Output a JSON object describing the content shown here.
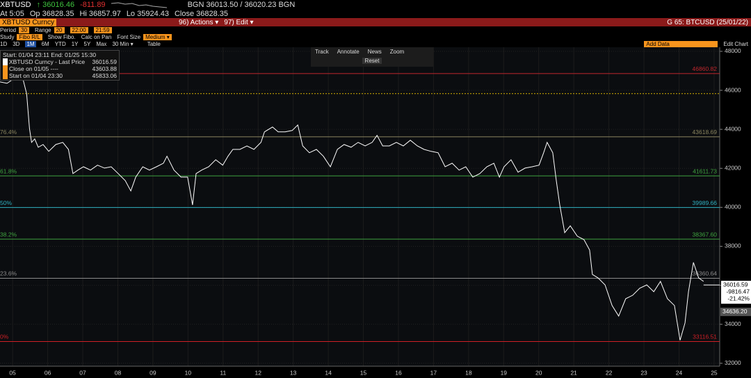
{
  "header": {
    "ticker": "XBTUSD",
    "last": "↑ 36016.46",
    "change": "-811.89",
    "bid_ask": "BGN 36013.50 / 36020.23 BGN",
    "at": "At 5:05",
    "open": "Op 36828.35",
    "high": "Hi 36857.97",
    "low": "Lo 35924.43",
    "close": "Close 36828.35"
  },
  "toolbar": {
    "security": "XBTUSD Curncy",
    "actions": "96) Actions ▾",
    "edit": "97) Edit ▾",
    "chart_id": "G 65: BTCUSD (25/01/22)"
  },
  "settings": {
    "period_label": "Period",
    "period": "30",
    "range_label": "Range",
    "range": "20",
    "from": "22:00",
    "to": "21:59",
    "study_label": "Study",
    "study": "Fibo R/L",
    "show_fibo": "Show Fibo.",
    "calc_on_pan": "Calc on Pan",
    "font_size_label": "Font Size",
    "font_size": "Medium ▾"
  },
  "periods": [
    "1D",
    "3D",
    "1M",
    "6M",
    "YTD",
    "1Y",
    "5Y",
    "Max",
    "30 Min ▾"
  ],
  "active_period": "1M",
  "table": "Table",
  "add_data": "Add Data",
  "edit_chart": "Edit Chart",
  "tools": [
    "Track",
    "Annotate",
    "News",
    "Zoom"
  ],
  "reset": "Reset",
  "legend": {
    "range": "Start: 01/04 23:11 End: 01/25 15:30",
    "rows": [
      {
        "name": "XBTUSD Curncy - Last Price",
        "value": 36016.59,
        "color": "#ffffff"
      },
      {
        "name": "Close on 01/05 ----",
        "value": 43603.88,
        "color": "#f7941d"
      },
      {
        "name": "Start on 01/04 23:30",
        "value": 45833.06,
        "color": "#f7941d"
      }
    ]
  },
  "chart_data": {
    "type": "line",
    "color": "#ffffff",
    "x": [
      4.64,
      4.84,
      5.14,
      5.3,
      5.4,
      5.48,
      5.54,
      5.63,
      5.73,
      5.87,
      6.03,
      6.23,
      6.43,
      6.59,
      6.72,
      6.86,
      7.02,
      7.22,
      7.42,
      7.62,
      7.81,
      8.01,
      8.21,
      8.37,
      8.51,
      8.71,
      8.9,
      9.1,
      9.3,
      9.4,
      9.6,
      9.8,
      9.99,
      10.13,
      10.23,
      10.39,
      10.59,
      10.79,
      10.99,
      11.14,
      11.28,
      11.48,
      11.68,
      11.88,
      12.08,
      12.18,
      12.41,
      12.57,
      12.77,
      12.97,
      13.13,
      13.27,
      13.46,
      13.66,
      13.86,
      14.06,
      14.26,
      14.45,
      14.65,
      14.85,
      15.05,
      15.25,
      15.39,
      15.55,
      15.74,
      15.94,
      16.14,
      16.34,
      16.54,
      16.73,
      16.93,
      17.13,
      17.33,
      17.53,
      17.73,
      17.92,
      18.12,
      18.32,
      18.52,
      18.72,
      18.88,
      19.01,
      19.21,
      19.41,
      19.61,
      19.81,
      20.01,
      20.14,
      20.24,
      20.4,
      20.5,
      20.6,
      20.74,
      20.9,
      21.1,
      21.29,
      21.45,
      21.53,
      21.69,
      21.89,
      22.09,
      22.28,
      22.48,
      22.68,
      22.88,
      23.08,
      23.28,
      23.47,
      23.67,
      23.87,
      24.03,
      24.17,
      24.27,
      24.41,
      24.56,
      24.7
    ],
    "values": [
      46430,
      46360,
      46720,
      46540,
      45830,
      44040,
      43330,
      43510,
      43080,
      43220,
      42870,
      43220,
      43330,
      42970,
      41730,
      41910,
      42080,
      41910,
      42160,
      42010,
      42080,
      41730,
      41370,
      40840,
      41550,
      42080,
      41910,
      42080,
      42260,
      42620,
      41910,
      41550,
      41550,
      40120,
      41730,
      41910,
      42080,
      42440,
      42160,
      42620,
      42970,
      42970,
      43150,
      42970,
      43330,
      43870,
      44120,
      43870,
      43870,
      43940,
      44220,
      43150,
      42800,
      42970,
      42620,
      42080,
      42970,
      43220,
      43080,
      43330,
      43150,
      43330,
      43690,
      43150,
      43150,
      43330,
      43150,
      43440,
      43150,
      42970,
      42870,
      42800,
      42080,
      42260,
      41910,
      42080,
      41550,
      41730,
      42080,
      42260,
      41550,
      42080,
      42440,
      41800,
      42010,
      42080,
      42160,
      42800,
      43330,
      42800,
      41370,
      40120,
      38700,
      39050,
      38520,
      38340,
      37810,
      36560,
      36380,
      36020,
      34960,
      34420,
      35310,
      35490,
      35850,
      36020,
      35670,
      36200,
      35310,
      34960,
      33180,
      34070,
      35670,
      37170,
      36380,
      36200
    ],
    "xlim": [
      4.64,
      25.16
    ],
    "xticks": [
      {
        "value": 5,
        "label": "05"
      },
      {
        "value": 6,
        "label": "06"
      },
      {
        "value": 7,
        "label": "07"
      },
      {
        "value": 8,
        "label": "08"
      },
      {
        "value": 9,
        "label": "09"
      },
      10,
      11,
      12,
      13,
      14,
      15,
      16,
      17,
      18,
      19,
      20,
      21,
      22,
      23,
      24,
      25
    ],
    "ylim": [
      31850,
      48210
    ],
    "yticks": [
      32000,
      34000,
      36000,
      38000,
      40000,
      42000,
      44000,
      46000,
      48000
    ],
    "grid": true,
    "fib_levels": [
      {
        "value": 46860.82,
        "color": "#c0272d"
      },
      {
        "level": "76.4%",
        "value": 43618.69,
        "color": "#8c8660"
      },
      {
        "level": "61.8%",
        "value": 41611.73,
        "color": "#3fa33f"
      },
      {
        "level": "50%",
        "value": 39989.66,
        "color": "#2fb0c0"
      },
      {
        "level": "38.2%",
        "value": 38367.6,
        "value_label": "38367.60",
        "color": "#3fa33f"
      },
      {
        "level": "23.6%",
        "value": 36360.64,
        "color": "#8a8a8a"
      },
      {
        "level": "0%",
        "value": 33116.51,
        "color": "#d01f26"
      }
    ],
    "change_labels": [
      "-9816.47",
      "-21.42%"
    ],
    "cursor": {
      "value": 34636.2,
      "label": "34636.20"
    }
  }
}
